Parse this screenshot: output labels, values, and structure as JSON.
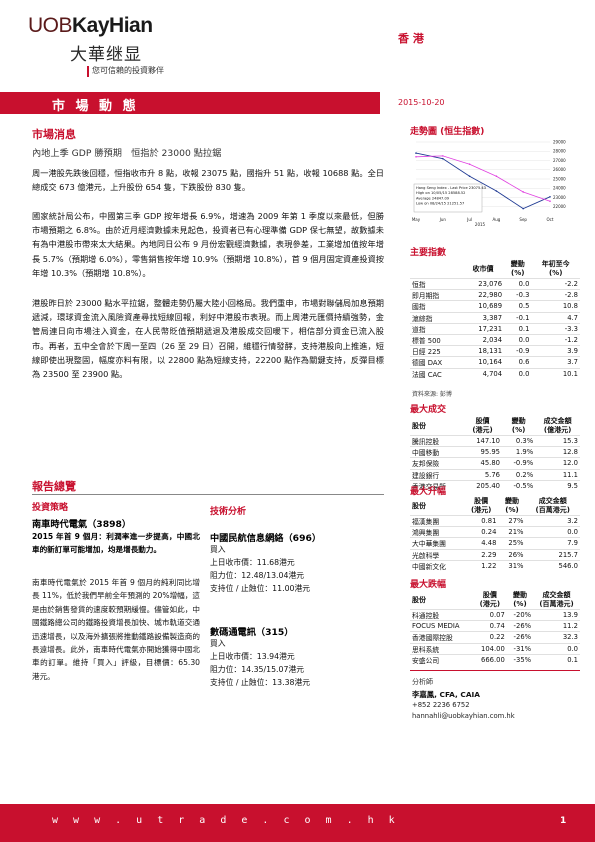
{
  "header": {
    "brand_part1": "UOB",
    "brand_part2": "KayHian",
    "brand_cn": "大華继显",
    "tagline": "您可信賴的投資夥伴",
    "region": "香 港",
    "band_title": "市 場 動 態",
    "date": "2015-10-20"
  },
  "market_news": {
    "section_title": "市場消息",
    "headline": "內地上季 GDP 勝預期　恒指於 23000 點拉鋸",
    "paragraphs": [
      "周一港股先跌後回穩，恒指收市升 8 點，收報 23075 點，國指升 51 點，收報 10688 點。全日總成交 673 億港元，上升股份 654 隻，下跌股份 830 隻。",
      "國家統計局公布，中國第三季 GDP 按年增長 6.9%，增速為 2009 年第 1 季度以來最低，但勝市場預期之 6.8%。由於近月經濟數據未見起色，投資者已有心理準備 GDP 保七無望，故數據未有為中港股市帶來太大結果。內地同日公布 9 月份宏觀經濟數據，表現參差，工業增加值按年增長 5.7%（預期增 6.0%），零售銷售按年增 10.9%（預期增 10.8%），首 9 個月固定資產投資按年增 10.3%（預期增 10.8%）。",
      "港股昨日於 23000 點水平拉鋸，整體走勢仍屬大陸小回格局。我們重申，市場對聯儲局加息預期遞減，環球資金流入風險資產尋找短線回報，利好中港股市表現。而上周港元匯價持續強勢，金管局連日向市場注入資金，在人民幣貶值預期遞退及港股成交回暖下，相信部分資金已流入股市。再者，五中全會於下周一至四（26 至 29 日）召開，維穩行情發酵，支持港股向上推進，短線即使出現整固，幅度亦料有限，以 22800 點為短線支持，22200 點作為關鍵支持，反彈目標為 23500 至 23900 點。"
    ]
  },
  "trend_chart": {
    "title": "走勢圖 (恒生指數)",
    "legend": "Hang Seng Index - Last Price  23075.43\nHigh on 10/05/15  28588.52\nAverage  24847.09\nLow on 08/24/15  21251.57",
    "x_ticks": [
      "May",
      "Jun",
      "Jul",
      "Aug",
      "Sep",
      "Oct"
    ],
    "x_year": "2015",
    "y_ticks": [
      "29000",
      "28000",
      "27000",
      "26000",
      "25000",
      "24000",
      "23000",
      "22000"
    ]
  },
  "chart_data": {
    "type": "line",
    "title": "走勢圖 (恒生指數)",
    "x": [
      "May",
      "Jun",
      "Jul",
      "Aug",
      "Sep",
      "Oct"
    ],
    "series": [
      {
        "name": "Hang Seng Index",
        "values": [
          27800,
          27200,
          25300,
          23700,
          21800,
          23075
        ]
      },
      {
        "name": "Average",
        "values": [
          27400,
          27500,
          26600,
          25300,
          23600,
          22600
        ]
      }
    ],
    "ylim": [
      21000,
      29000
    ]
  },
  "main_indices": {
    "title": "主要指數",
    "headers": [
      "",
      "收市價",
      "變動\n(%)",
      "年初至今\n(%)"
    ],
    "rows": [
      [
        "恒指",
        "23,076",
        "0.0",
        "-2.2"
      ],
      [
        "即月期指",
        "22,980",
        "-0.3",
        "-2.8"
      ],
      [
        "國指",
        "10,689",
        "0.5",
        "10.8"
      ],
      [
        "滬綜指",
        "3,387",
        "-0.1",
        "4.7"
      ],
      [
        "道指",
        "17,231",
        "0.1",
        "-3.3"
      ],
      [
        "標普 500",
        "2,034",
        "0.0",
        "-1.2"
      ],
      [
        "日經 225",
        "18,131",
        "-0.9",
        "3.9"
      ],
      [
        "德國 DAX",
        "10,164",
        "0.6",
        "3.7"
      ],
      [
        "法國 CAC",
        "4,704",
        "0.0",
        "10.1"
      ]
    ],
    "source": "資料來源: 彭博"
  },
  "most_active": {
    "title": "最大成交",
    "headers": [
      "股份",
      "股價\n(港元)",
      "變動\n(%)",
      "成交金額\n(億港元)"
    ],
    "rows": [
      [
        "騰訊控股",
        "147.10",
        "0.3%",
        "15.3"
      ],
      [
        "中國移動",
        "95.95",
        "1.9%",
        "12.8"
      ],
      [
        "友邦保險",
        "45.80",
        "-0.9%",
        "12.0"
      ],
      [
        "建設銀行",
        "5.76",
        "0.2%",
        "11.1"
      ],
      [
        "香港交易所",
        "205.40",
        "-0.5%",
        "9.5"
      ]
    ]
  },
  "top_gainers": {
    "title": "最大升幅",
    "headers": [
      "股份",
      "股價\n(港元)",
      "變動\n(%)",
      "成交金額\n(百萬港元)"
    ],
    "rows": [
      [
        "福漢集團",
        "0.81",
        "27%",
        "3.2"
      ],
      [
        "鴻興集團",
        "0.24",
        "21%",
        "0.0"
      ],
      [
        "大中華集團",
        "4.48",
        "25%",
        "7.9"
      ],
      [
        "光啟科學",
        "2.29",
        "26%",
        "215.7"
      ],
      [
        "中國新文化",
        "1.22",
        "31%",
        "546.0"
      ]
    ]
  },
  "top_losers": {
    "title": "最大跌幅",
    "headers": [
      "股份",
      "股價\n(港元)",
      "變動\n(%)",
      "成交金額\n(百萬港元)"
    ],
    "rows": [
      [
        "科通控股",
        "0.07",
        "-20%",
        "13.9"
      ],
      [
        "FOCUS MEDIA",
        "0.74",
        "-26%",
        "11.2"
      ],
      [
        "香港國際控股",
        "0.22",
        "-26%",
        "32.3"
      ],
      [
        "思科系統",
        "104.00",
        "-31%",
        "0.0"
      ],
      [
        "安盛公司",
        "666.00",
        "-35%",
        "0.1"
      ]
    ]
  },
  "analyst": {
    "label": "分析師",
    "name": "李嘉鳳, CFA, CAIA",
    "phone": "+852 2236 6752",
    "email": "hannahli@uobkayhian.com.hk"
  },
  "report": {
    "section_title": "報告總覽",
    "strategy_label": "投資策略",
    "strategy_stock": "南車時代電氣（3898）",
    "strategy_highlight": "2015 年首 9 個月：利潤率進一步提高，中國北車的新訂單可能增加，均是增長動力。",
    "strategy_body": "南車時代電氣於 2015 年首 9 個月的純利同比增長 11%，低於我們早前全年預測的 20%增幅，這是由於銷售發貨的速度較預期緩慢。儘管如此，中國鐵路總公司的鐵路投資增長加快、城市軌道交通迅速增長，以及海外擴張將推動鐵路設備製造商的長遠增長。此外，南車時代電氣亦開始獲得中國北車的訂單。維持「買入」評級，目標價：65.30 港元。",
    "technical_label": "技術分析",
    "tech_stocks": [
      {
        "name": "中國民航信息網絡（696）",
        "action": "買入",
        "close_label": "上日收市價：",
        "close": "11.68港元",
        "resist_label": "阻力位：",
        "resist": "12.48/13.04港元",
        "support_label": "支持位 / 止蝕位：",
        "support": "11.00港元"
      },
      {
        "name": "數碼通電訊（315）",
        "action": "買入",
        "close_label": "上日收市價：",
        "close": "13.94港元",
        "resist_label": "阻力位：",
        "resist": "14.35/15.07港元",
        "support_label": "支持位 / 止蝕位：",
        "support": "13.38港元"
      }
    ]
  },
  "footer": {
    "url": "w w w . u t r a d e . c o m . h k",
    "page": "1"
  },
  "colors": {
    "accent": "#c8102e",
    "index_line": "#1f3a93",
    "average_line": "#e040e0"
  }
}
